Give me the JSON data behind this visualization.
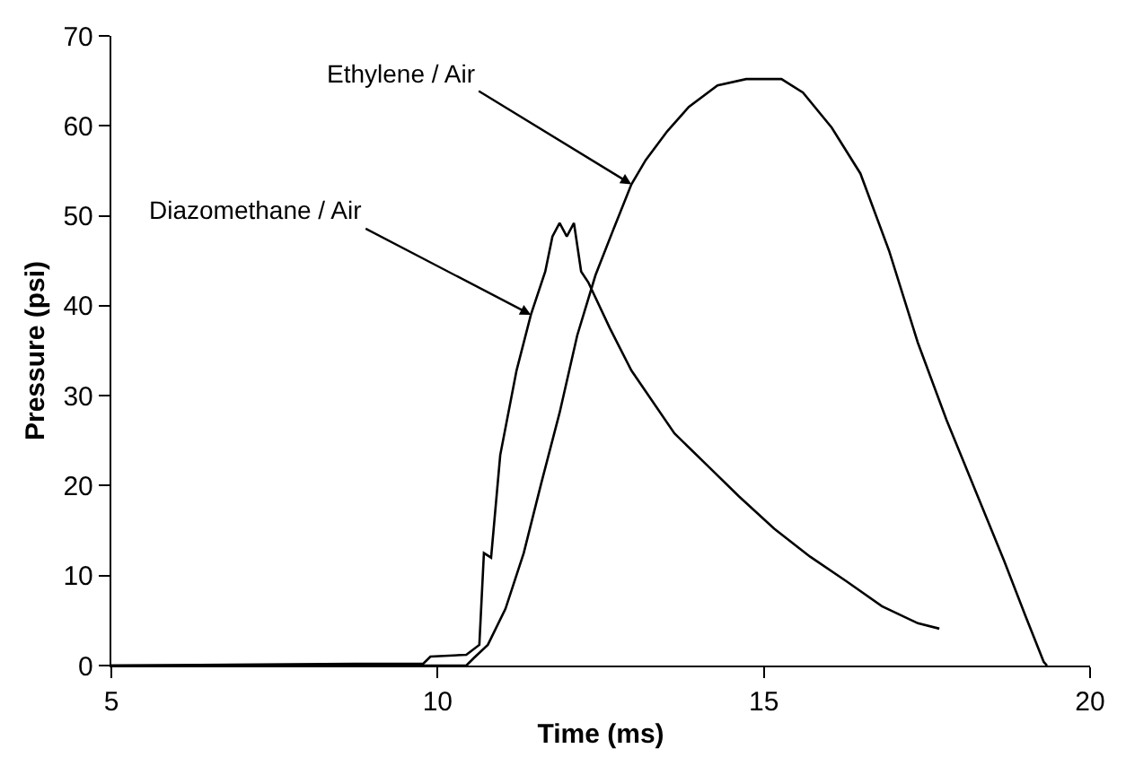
{
  "chart_data": {
    "type": "line",
    "xlabel": "Time (ms)",
    "ylabel": "Pressure (psi)",
    "xlim": [
      5,
      20
    ],
    "xticks": [
      5,
      10,
      15,
      20
    ],
    "ylim": [
      0,
      70
    ],
    "yticks": [
      0,
      10,
      20,
      30,
      40,
      50,
      60,
      70
    ],
    "marker": "none",
    "line_style": "solid",
    "series": [
      {
        "color": "#000000",
        "x": [
          5,
          8.74,
          9.78,
          9.89,
          10.44,
          10.64,
          10.71,
          10.82,
          10.96,
          11.21,
          11.43,
          11.65,
          11.76,
          11.87,
          11.98,
          12.09,
          12.2,
          12.31,
          12.64,
          12.97,
          13.63,
          14.07,
          14.62,
          15.16,
          15.71,
          16.26,
          16.81,
          17.36,
          17.69
        ],
        "values": [
          0,
          0.2,
          0.2,
          1,
          1.2,
          2.3,
          12.5,
          12,
          23.4,
          32.8,
          39,
          43.8,
          47.7,
          49.2,
          47.7,
          49.2,
          43.8,
          42.6,
          37.5,
          32.8,
          25.8,
          22.7,
          18.8,
          15.2,
          12.1,
          9.4,
          6.6,
          4.7,
          4.1
        ]
      },
      {
        "color": "#000000",
        "x": [
          5,
          10.44,
          10.55,
          10.77,
          11.04,
          11.32,
          11.59,
          11.87,
          12.14,
          12.42,
          12.69,
          12.97,
          13.19,
          13.52,
          13.85,
          14.29,
          14.73,
          15.27,
          15.6,
          16.04,
          16.48,
          16.92,
          17.36,
          17.8,
          18.24,
          18.68,
          19.01,
          19.29,
          19.34
        ],
        "values": [
          0,
          0,
          0.8,
          2.3,
          6.3,
          12.5,
          20.3,
          28.1,
          36.7,
          43.4,
          48.4,
          53.5,
          56.2,
          59.4,
          62.1,
          64.5,
          65.2,
          65.2,
          63.7,
          59.8,
          54.7,
          46.1,
          35.9,
          27.3,
          19.5,
          11.7,
          5.5,
          0.4,
          0
        ]
      }
    ],
    "annotations": [
      {
        "text": "Ethylene / Air",
        "x": 12.97,
        "y": 53.5
      },
      {
        "text": "Diazomethane / Air",
        "x": 11.43,
        "y": 39
      }
    ]
  }
}
